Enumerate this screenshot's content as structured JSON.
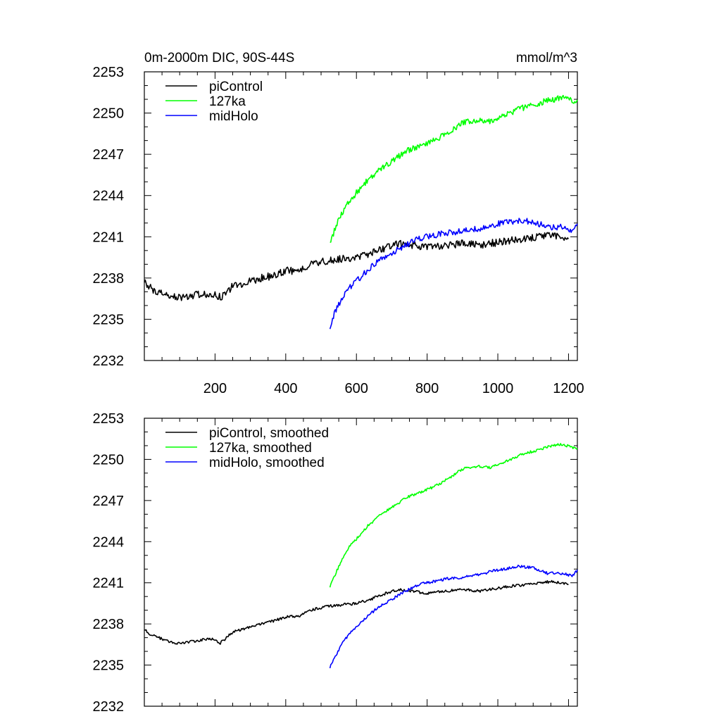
{
  "chart_data": [
    {
      "type": "line",
      "title": "0m-2000m DIC, 90S-44S",
      "units_label": "mmol/m^3",
      "xlabel": "",
      "ylabel": "",
      "xlim": [
        0,
        1225
      ],
      "ylim": [
        2232,
        2253
      ],
      "x_ticks": [
        200,
        400,
        600,
        800,
        1000,
        1200
      ],
      "x_tick_labels": [
        "200",
        "400",
        "600",
        "800",
        "1000",
        "1200"
      ],
      "y_ticks": [
        2232,
        2235,
        2238,
        2241,
        2244,
        2247,
        2250,
        2253
      ],
      "y_tick_labels": [
        "2232",
        "2235",
        "2238",
        "2241",
        "2244",
        "2247",
        "2250",
        "2253"
      ],
      "show_x_tick_labels": true,
      "legend_position": "top-left",
      "series": [
        {
          "name": "piControl",
          "color": "#000000",
          "noise": 0.28,
          "points": [
            [
              0,
              2237.7
            ],
            [
              20,
              2237.2
            ],
            [
              50,
              2236.9
            ],
            [
              80,
              2236.6
            ],
            [
              110,
              2236.6
            ],
            [
              150,
              2236.8
            ],
            [
              190,
              2236.9
            ],
            [
              215,
              2236.6
            ],
            [
              250,
              2237.4
            ],
            [
              300,
              2237.8
            ],
            [
              350,
              2238.1
            ],
            [
              400,
              2238.5
            ],
            [
              440,
              2238.6
            ],
            [
              470,
              2239.0
            ],
            [
              520,
              2239.3
            ],
            [
              560,
              2239.4
            ],
            [
              600,
              2239.5
            ],
            [
              640,
              2239.8
            ],
            [
              680,
              2240.2
            ],
            [
              720,
              2240.5
            ],
            [
              760,
              2240.4
            ],
            [
              800,
              2240.2
            ],
            [
              850,
              2240.4
            ],
            [
              900,
              2240.5
            ],
            [
              950,
              2240.4
            ],
            [
              1000,
              2240.6
            ],
            [
              1050,
              2240.8
            ],
            [
              1100,
              2240.9
            ],
            [
              1150,
              2241.1
            ],
            [
              1200,
              2240.9
            ]
          ]
        },
        {
          "name": "127ka",
          "color": "#00ff00",
          "noise": 0.22,
          "points": [
            [
              525,
              2240.6
            ],
            [
              540,
              2241.6
            ],
            [
              560,
              2242.8
            ],
            [
              580,
              2243.6
            ],
            [
              600,
              2244.2
            ],
            [
              630,
              2245.1
            ],
            [
              660,
              2245.8
            ],
            [
              700,
              2246.5
            ],
            [
              740,
              2247.2
            ],
            [
              780,
              2247.6
            ],
            [
              820,
              2248.0
            ],
            [
              860,
              2248.6
            ],
            [
              900,
              2249.3
            ],
            [
              940,
              2249.5
            ],
            [
              980,
              2249.4
            ],
            [
              1020,
              2249.8
            ],
            [
              1060,
              2250.3
            ],
            [
              1100,
              2250.6
            ],
            [
              1140,
              2250.9
            ],
            [
              1180,
              2251.1
            ],
            [
              1225,
              2250.8
            ]
          ]
        },
        {
          "name": "midHolo",
          "color": "#0000ff",
          "noise": 0.22,
          "points": [
            [
              525,
              2234.3
            ],
            [
              540,
              2235.6
            ],
            [
              560,
              2236.6
            ],
            [
              580,
              2237.3
            ],
            [
              600,
              2237.8
            ],
            [
              630,
              2238.5
            ],
            [
              660,
              2239.2
            ],
            [
              700,
              2239.8
            ],
            [
              740,
              2240.4
            ],
            [
              780,
              2240.9
            ],
            [
              820,
              2241.1
            ],
            [
              860,
              2241.3
            ],
            [
              900,
              2241.4
            ],
            [
              950,
              2241.6
            ],
            [
              990,
              2241.9
            ],
            [
              1020,
              2242.0
            ],
            [
              1060,
              2242.2
            ],
            [
              1100,
              2242.1
            ],
            [
              1140,
              2241.7
            ],
            [
              1180,
              2241.7
            ],
            [
              1210,
              2241.5
            ],
            [
              1225,
              2241.9
            ]
          ]
        }
      ]
    },
    {
      "type": "line",
      "title": "",
      "xlabel": "",
      "ylabel": "",
      "xlim": [
        0,
        1225
      ],
      "ylim": [
        2232,
        2253
      ],
      "x_ticks": [
        200,
        400,
        600,
        800,
        1000,
        1200
      ],
      "y_ticks": [
        2232,
        2235,
        2238,
        2241,
        2244,
        2247,
        2250,
        2253
      ],
      "y_tick_labels": [
        "2232",
        "2235",
        "2238",
        "2241",
        "2244",
        "2247",
        "2250",
        "2253"
      ],
      "show_x_tick_labels": false,
      "legend_position": "top-left",
      "series": [
        {
          "name": "piControl, smoothed",
          "color": "#000000",
          "noise": 0.1,
          "points": [
            [
              0,
              2237.6
            ],
            [
              20,
              2237.2
            ],
            [
              50,
              2236.9
            ],
            [
              80,
              2236.6
            ],
            [
              110,
              2236.6
            ],
            [
              150,
              2236.8
            ],
            [
              190,
              2236.9
            ],
            [
              215,
              2236.6
            ],
            [
              250,
              2237.4
            ],
            [
              300,
              2237.8
            ],
            [
              350,
              2238.1
            ],
            [
              400,
              2238.5
            ],
            [
              440,
              2238.6
            ],
            [
              470,
              2239.0
            ],
            [
              520,
              2239.3
            ],
            [
              560,
              2239.4
            ],
            [
              600,
              2239.5
            ],
            [
              640,
              2239.8
            ],
            [
              680,
              2240.2
            ],
            [
              720,
              2240.5
            ],
            [
              760,
              2240.4
            ],
            [
              800,
              2240.2
            ],
            [
              850,
              2240.4
            ],
            [
              900,
              2240.5
            ],
            [
              950,
              2240.4
            ],
            [
              1000,
              2240.6
            ],
            [
              1050,
              2240.8
            ],
            [
              1100,
              2240.9
            ],
            [
              1150,
              2241.1
            ],
            [
              1200,
              2240.9
            ]
          ]
        },
        {
          "name": "127ka, smoothed",
          "color": "#00ff00",
          "noise": 0.1,
          "points": [
            [
              525,
              2240.7
            ],
            [
              540,
              2241.6
            ],
            [
              560,
              2242.8
            ],
            [
              580,
              2243.6
            ],
            [
              600,
              2244.2
            ],
            [
              630,
              2245.1
            ],
            [
              660,
              2245.8
            ],
            [
              700,
              2246.5
            ],
            [
              740,
              2247.2
            ],
            [
              780,
              2247.6
            ],
            [
              820,
              2248.0
            ],
            [
              860,
              2248.6
            ],
            [
              900,
              2249.3
            ],
            [
              940,
              2249.5
            ],
            [
              980,
              2249.4
            ],
            [
              1020,
              2249.8
            ],
            [
              1060,
              2250.3
            ],
            [
              1100,
              2250.6
            ],
            [
              1140,
              2250.9
            ],
            [
              1180,
              2251.1
            ],
            [
              1225,
              2250.8
            ]
          ]
        },
        {
          "name": "midHolo, smoothed",
          "color": "#0000ff",
          "noise": 0.1,
          "points": [
            [
              525,
              2234.8
            ],
            [
              540,
              2235.6
            ],
            [
              560,
              2236.6
            ],
            [
              580,
              2237.3
            ],
            [
              600,
              2237.8
            ],
            [
              630,
              2238.5
            ],
            [
              660,
              2239.2
            ],
            [
              700,
              2239.8
            ],
            [
              740,
              2240.4
            ],
            [
              780,
              2240.9
            ],
            [
              820,
              2241.1
            ],
            [
              860,
              2241.3
            ],
            [
              900,
              2241.4
            ],
            [
              950,
              2241.6
            ],
            [
              990,
              2241.9
            ],
            [
              1020,
              2242.0
            ],
            [
              1060,
              2242.2
            ],
            [
              1100,
              2242.1
            ],
            [
              1140,
              2241.7
            ],
            [
              1180,
              2241.7
            ],
            [
              1210,
              2241.5
            ],
            [
              1225,
              2241.9
            ]
          ]
        }
      ]
    }
  ]
}
